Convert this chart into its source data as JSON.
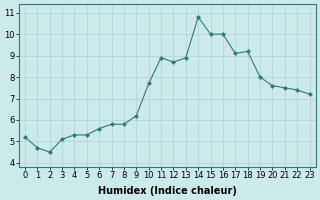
{
  "x": [
    0,
    1,
    2,
    3,
    4,
    5,
    6,
    7,
    8,
    9,
    10,
    11,
    12,
    13,
    14,
    15,
    16,
    17,
    18,
    19,
    20,
    21,
    22,
    23
  ],
  "y": [
    5.2,
    4.7,
    4.5,
    5.1,
    5.3,
    5.3,
    5.6,
    5.8,
    5.8,
    6.2,
    7.7,
    8.9,
    8.7,
    8.9,
    10.8,
    10.0,
    10.0,
    9.1,
    9.2,
    8.0,
    7.6,
    7.5,
    7.4,
    7.2
  ],
  "line_color": "#2e7d6e",
  "marker": "D",
  "marker_size": 2,
  "bg_color": "#cceaea",
  "grid_color": "#aad4d4",
  "xlabel": "Humidex (Indice chaleur)",
  "xlim": [
    -0.5,
    23.5
  ],
  "ylim": [
    3.8,
    11.4
  ],
  "yticks": [
    4,
    5,
    6,
    7,
    8,
    9,
    10,
    11
  ],
  "xticks": [
    0,
    1,
    2,
    3,
    4,
    5,
    6,
    7,
    8,
    9,
    10,
    11,
    12,
    13,
    14,
    15,
    16,
    17,
    18,
    19,
    20,
    21,
    22,
    23
  ],
  "tick_fontsize": 6,
  "xlabel_fontsize": 7
}
